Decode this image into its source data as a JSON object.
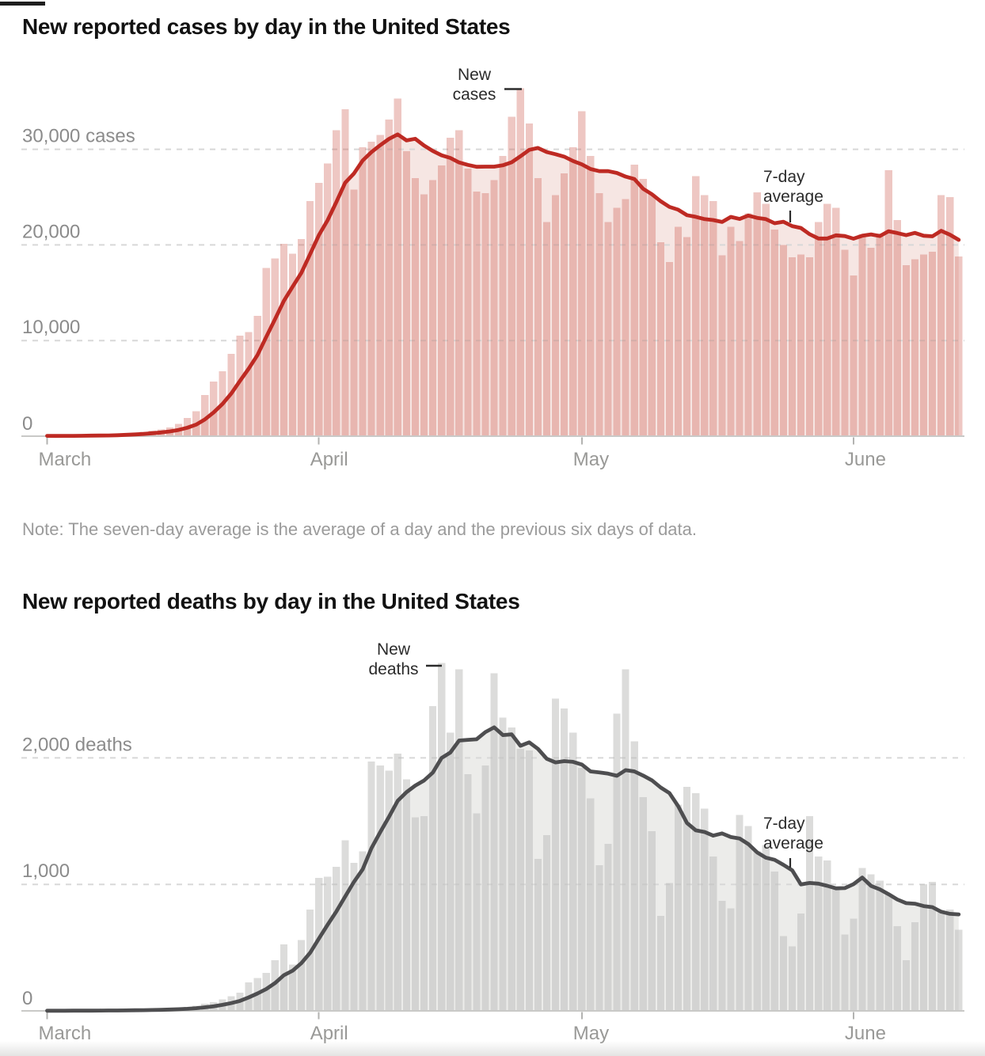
{
  "page": {
    "note": "Note: The seven-day average is the average of a day and the previous six days of data.",
    "top_edge_bar_color": "#1e1e1e",
    "background": "#ffffff"
  },
  "chart_data": [
    {
      "type": "bar",
      "title": "New reported cases by day in the United States",
      "unit": "cases",
      "start_date": "March 1",
      "end_date": "June 13",
      "x_tick_labels": [
        "March",
        "April",
        "May",
        "June"
      ],
      "x_tick_day_indexes": [
        0,
        31,
        61,
        92
      ],
      "y_gridlines": [
        10000,
        20000,
        30000
      ],
      "y_gridline_labels": [
        "10,000",
        "20,000",
        "30,000 cases"
      ],
      "y_zero_label": "0",
      "ylim": [
        0,
        37500
      ],
      "grid": true,
      "bar_series_name": "New cases",
      "line_series_name": "7-day average",
      "line_rule": "average of a day and the previous six days",
      "values": [
        30,
        25,
        35,
        55,
        70,
        110,
        120,
        130,
        190,
        290,
        350,
        450,
        600,
        700,
        900,
        1300,
        1900,
        2600,
        4300,
        5700,
        6800,
        8600,
        10500,
        10900,
        12600,
        17600,
        18600,
        20100,
        19100,
        20600,
        24600,
        26500,
        28500,
        32000,
        34200,
        25800,
        30200,
        30800,
        31500,
        33100,
        35300,
        29800,
        27000,
        25300,
        26800,
        28300,
        31200,
        32000,
        28000,
        25600,
        25400,
        26800,
        29300,
        33400,
        36400,
        32700,
        27000,
        22400,
        25200,
        27500,
        30200,
        34000,
        29300,
        25400,
        22400,
        23900,
        24800,
        28400,
        26900,
        25300,
        20300,
        18200,
        21900,
        20800,
        27200,
        25200,
        24600,
        18900,
        21900,
        20400,
        23300,
        25500,
        24300,
        21600,
        20000,
        18700,
        19000,
        18700,
        22400,
        24300,
        23900,
        19500,
        16800,
        21100,
        19700,
        21200,
        27800,
        22600,
        17900,
        18500,
        19000,
        19300,
        25200,
        25000,
        18800
      ],
      "colors": {
        "bar": "rgba(204,84,72,0.33)",
        "area": "#f6e6e3",
        "line": "#be2a23"
      },
      "annotations": {
        "bar_label_lines": [
          "New",
          "cases"
        ],
        "line_label_lines": [
          "7-day",
          "average"
        ]
      }
    },
    {
      "type": "bar",
      "title": "New reported deaths by day in the United States",
      "unit": "deaths",
      "start_date": "March 1",
      "end_date": "June 13",
      "x_tick_labels": [
        "March",
        "April",
        "May",
        "June"
      ],
      "x_tick_day_indexes": [
        0,
        31,
        61,
        92
      ],
      "y_gridlines": [
        1000,
        2000
      ],
      "y_gridline_labels": [
        "1,000",
        "2,000 deaths"
      ],
      "y_zero_label": "0",
      "ylim": [
        0,
        2900
      ],
      "grid": true,
      "bar_series_name": "New deaths",
      "line_series_name": "7-day average",
      "line_rule": "average of a day and the previous six days",
      "values": [
        1,
        1,
        2,
        3,
        2,
        4,
        4,
        4,
        5,
        6,
        8,
        10,
        12,
        14,
        18,
        23,
        30,
        42,
        57,
        70,
        92,
        115,
        145,
        225,
        260,
        300,
        400,
        525,
        365,
        560,
        800,
        1050,
        1060,
        1140,
        1350,
        1170,
        1260,
        1970,
        1940,
        1900,
        2035,
        1830,
        1530,
        1540,
        2410,
        2750,
        2200,
        2700,
        1870,
        1560,
        1940,
        2670,
        2320,
        2240,
        2070,
        2060,
        1200,
        1390,
        2470,
        2390,
        2200,
        1920,
        1680,
        1150,
        1320,
        2350,
        2700,
        2130,
        1690,
        1420,
        750,
        1010,
        1630,
        1770,
        1720,
        1600,
        1220,
        870,
        810,
        1550,
        1460,
        1260,
        1310,
        1100,
        590,
        510,
        770,
        1540,
        1220,
        1190,
        960,
        605,
        730,
        1130,
        1080,
        1030,
        920,
        670,
        400,
        700,
        1000,
        1020,
        780,
        800,
        640
      ],
      "colors": {
        "bar": "rgba(191,191,189,0.55)",
        "area": "#ececea",
        "line": "#4e4e50"
      },
      "annotations": {
        "bar_label_lines": [
          "New",
          "deaths"
        ],
        "line_label_lines": [
          "7-day",
          "average"
        ]
      }
    }
  ]
}
